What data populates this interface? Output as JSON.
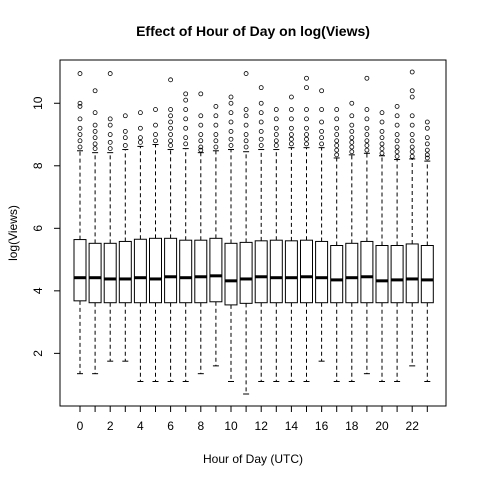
{
  "chart_data": {
    "type": "boxplot",
    "title": "Effect of Hour of Day on log(Views)",
    "xlabel": "Hour of Day (UTC)",
    "ylabel": "log(Views)",
    "x_tick_labels": [
      "0",
      "2",
      "4",
      "6",
      "8",
      "10",
      "12",
      "14",
      "16",
      "18",
      "20",
      "22"
    ],
    "y_tick_labels": [
      "2",
      "4",
      "6",
      "8",
      "10"
    ],
    "y_ticks": [
      2,
      4,
      6,
      8,
      10
    ],
    "ylim": [
      0.7,
      11.0
    ],
    "categories": [
      0,
      1,
      2,
      3,
      4,
      5,
      6,
      7,
      8,
      9,
      10,
      11,
      12,
      13,
      14,
      15,
      16,
      17,
      18,
      19,
      20,
      21,
      22,
      23
    ],
    "boxes": [
      {
        "hour": 0,
        "min": 1.35,
        "q1": 3.68,
        "median": 4.42,
        "q3": 5.64,
        "max": 8.48,
        "outliers": [
          8.6,
          8.8,
          9.0,
          9.2,
          9.5,
          9.9,
          10.0,
          10.95
        ]
      },
      {
        "hour": 1,
        "min": 1.35,
        "q1": 3.62,
        "median": 4.42,
        "q3": 5.52,
        "max": 8.42,
        "outliers": [
          8.55,
          8.7,
          8.9,
          9.1,
          9.3,
          9.7,
          10.4
        ]
      },
      {
        "hour": 2,
        "min": 1.75,
        "q1": 3.62,
        "median": 4.38,
        "q3": 5.52,
        "max": 8.42,
        "outliers": [
          8.55,
          8.75,
          9.0,
          9.3,
          9.5,
          10.95
        ]
      },
      {
        "hour": 3,
        "min": 1.75,
        "q1": 3.62,
        "median": 4.38,
        "q3": 5.58,
        "max": 8.52,
        "outliers": [
          8.65,
          8.9,
          9.1,
          9.6
        ]
      },
      {
        "hour": 4,
        "min": 1.1,
        "q1": 3.62,
        "median": 4.42,
        "q3": 5.65,
        "max": 8.62,
        "outliers": [
          8.75,
          8.9,
          9.2,
          9.7
        ]
      },
      {
        "hour": 5,
        "min": 1.1,
        "q1": 3.62,
        "median": 4.38,
        "q3": 5.68,
        "max": 8.68,
        "outliers": [
          8.8,
          9.0,
          9.3,
          9.8
        ]
      },
      {
        "hour": 6,
        "min": 1.1,
        "q1": 3.62,
        "median": 4.45,
        "q3": 5.68,
        "max": 8.52,
        "outliers": [
          8.65,
          8.8,
          9.0,
          9.2,
          9.4,
          9.6,
          9.8,
          10.75
        ]
      },
      {
        "hour": 7,
        "min": 1.1,
        "q1": 3.62,
        "median": 4.42,
        "q3": 5.62,
        "max": 8.55,
        "outliers": [
          8.7,
          8.9,
          9.2,
          9.5,
          9.8,
          10.1,
          10.3
        ]
      },
      {
        "hour": 8,
        "min": 1.35,
        "q1": 3.62,
        "median": 4.45,
        "q3": 5.62,
        "max": 8.42,
        "outliers": [
          8.5,
          8.6,
          8.8,
          9.0,
          9.3,
          9.6,
          10.3
        ]
      },
      {
        "hour": 9,
        "min": 1.6,
        "q1": 3.65,
        "median": 4.48,
        "q3": 5.68,
        "max": 8.48,
        "outliers": [
          8.6,
          8.8,
          9.0,
          9.3,
          9.6,
          9.9
        ]
      },
      {
        "hour": 10,
        "min": 1.1,
        "q1": 3.55,
        "median": 4.32,
        "q3": 5.52,
        "max": 8.52,
        "outliers": [
          8.65,
          8.85,
          9.1,
          9.4,
          9.7,
          10.0,
          10.2
        ]
      },
      {
        "hour": 11,
        "min": 0.7,
        "q1": 3.6,
        "median": 4.38,
        "q3": 5.55,
        "max": 8.45,
        "outliers": [
          8.6,
          8.8,
          9.0,
          9.3,
          9.6,
          9.8,
          10.95
        ]
      },
      {
        "hour": 12,
        "min": 1.1,
        "q1": 3.62,
        "median": 4.45,
        "q3": 5.6,
        "max": 8.52,
        "outliers": [
          8.65,
          8.85,
          9.1,
          9.4,
          9.7,
          10.0,
          10.5
        ]
      },
      {
        "hour": 13,
        "min": 1.1,
        "q1": 3.62,
        "median": 4.42,
        "q3": 5.62,
        "max": 8.52,
        "outliers": [
          8.65,
          8.8,
          9.0,
          9.2,
          9.5,
          9.8
        ]
      },
      {
        "hour": 14,
        "min": 1.1,
        "q1": 3.62,
        "median": 4.42,
        "q3": 5.6,
        "max": 8.58,
        "outliers": [
          8.7,
          8.85,
          9.0,
          9.2,
          9.5,
          9.8,
          10.2
        ]
      },
      {
        "hour": 15,
        "min": 1.1,
        "q1": 3.62,
        "median": 4.45,
        "q3": 5.62,
        "max": 8.58,
        "outliers": [
          8.7,
          8.85,
          9.0,
          9.2,
          9.5,
          9.8,
          10.5,
          10.8
        ]
      },
      {
        "hour": 16,
        "min": 1.75,
        "q1": 3.62,
        "median": 4.42,
        "q3": 5.58,
        "max": 8.58,
        "outliers": [
          8.7,
          8.9,
          9.1,
          9.4,
          9.8,
          10.4
        ]
      },
      {
        "hour": 17,
        "min": 1.1,
        "q1": 3.62,
        "median": 4.35,
        "q3": 5.45,
        "max": 8.25,
        "outliers": [
          8.35,
          8.5,
          8.65,
          8.8,
          9.0,
          9.2,
          9.5,
          9.8
        ]
      },
      {
        "hour": 18,
        "min": 1.1,
        "q1": 3.62,
        "median": 4.42,
        "q3": 5.52,
        "max": 8.35,
        "outliers": [
          8.45,
          8.6,
          8.75,
          8.9,
          9.1,
          9.3,
          9.6,
          10.0
        ]
      },
      {
        "hour": 19,
        "min": 1.35,
        "q1": 3.62,
        "median": 4.45,
        "q3": 5.58,
        "max": 8.4,
        "outliers": [
          8.5,
          8.65,
          8.8,
          9.0,
          9.2,
          9.5,
          9.8,
          10.8
        ]
      },
      {
        "hour": 20,
        "min": 1.1,
        "q1": 3.62,
        "median": 4.32,
        "q3": 5.45,
        "max": 8.32,
        "outliers": [
          8.4,
          8.55,
          8.7,
          8.9,
          9.1,
          9.4,
          9.7
        ]
      },
      {
        "hour": 21,
        "min": 1.1,
        "q1": 3.62,
        "median": 4.35,
        "q3": 5.45,
        "max": 8.2,
        "outliers": [
          8.3,
          8.45,
          8.6,
          8.8,
          9.0,
          9.3,
          9.6,
          9.9
        ]
      },
      {
        "hour": 22,
        "min": 1.6,
        "q1": 3.62,
        "median": 4.38,
        "q3": 5.5,
        "max": 8.22,
        "outliers": [
          8.3,
          8.45,
          8.6,
          8.8,
          9.0,
          9.3,
          9.6,
          10.2,
          10.4,
          11.0
        ]
      },
      {
        "hour": 23,
        "min": 1.1,
        "q1": 3.62,
        "median": 4.35,
        "q3": 5.45,
        "max": 8.15,
        "outliers": [
          8.25,
          8.35,
          8.5,
          8.7,
          8.9,
          9.2,
          9.4
        ]
      }
    ]
  }
}
